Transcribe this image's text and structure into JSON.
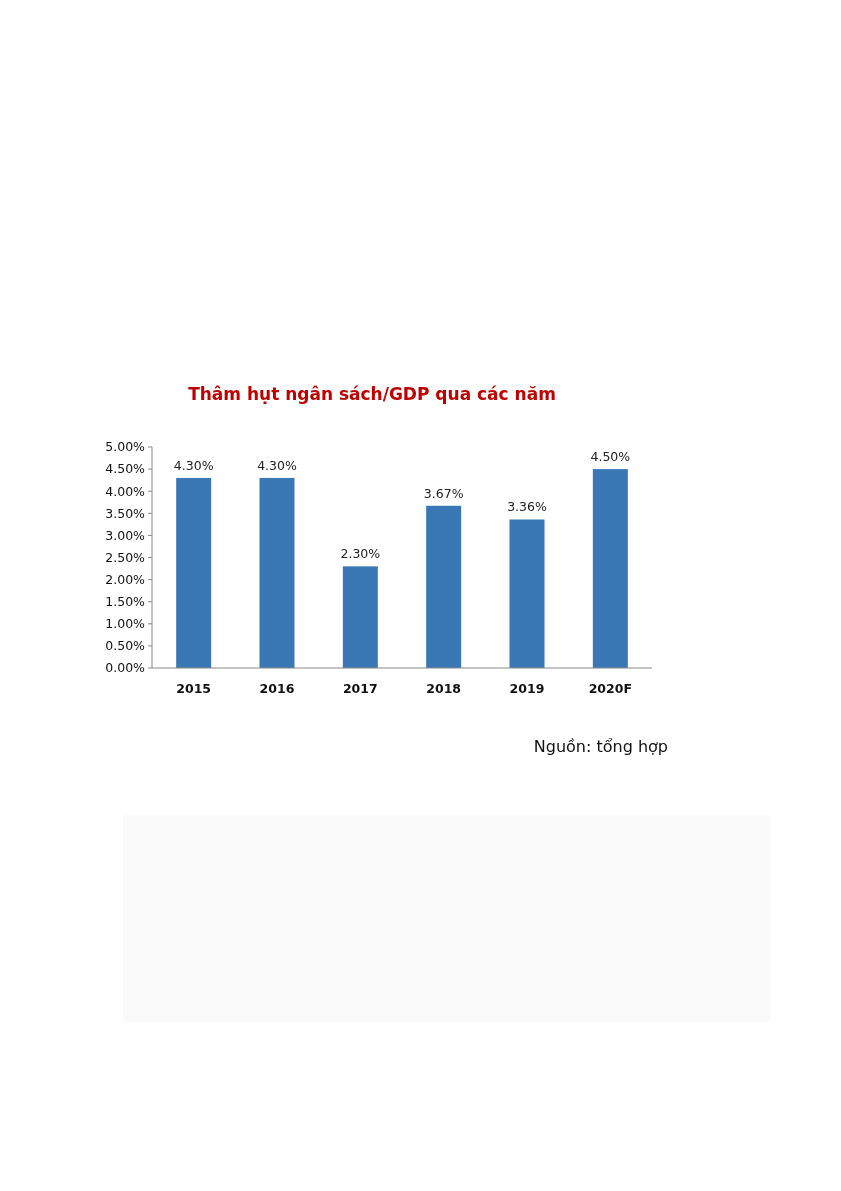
{
  "chart_data": {
    "type": "bar",
    "title": "Thâm hụt ngân sách/GDP qua các năm",
    "categories": [
      "2015",
      "2016",
      "2017",
      "2018",
      "2019",
      "2020F"
    ],
    "values": [
      4.3,
      4.3,
      2.3,
      3.67,
      3.36,
      4.5
    ],
    "value_labels": [
      "4.30%",
      "4.30%",
      "2.30%",
      "3.67%",
      "3.36%",
      "4.50%"
    ],
    "color": "#3a78b5",
    "ylim": [
      0,
      5
    ],
    "yticks": [
      {
        "value": 0,
        "label": "0.00%"
      },
      {
        "value": 0.5,
        "label": "0.50%"
      },
      {
        "value": 1,
        "label": "1.00%"
      },
      {
        "value": 1.5,
        "label": "1.50%"
      },
      {
        "value": 2,
        "label": "2.00%"
      },
      {
        "value": 2.5,
        "label": "2.50%"
      },
      {
        "value": 3,
        "label": "3.00%"
      },
      {
        "value": 3.5,
        "label": "3.50%"
      },
      {
        "value": 4,
        "label": "4.00%"
      },
      {
        "value": 4.5,
        "label": "4.50%"
      },
      {
        "value": 5,
        "label": "5.00%"
      }
    ],
    "annotations": [
      "Nguồn: tổng hợp"
    ],
    "grid": false
  }
}
